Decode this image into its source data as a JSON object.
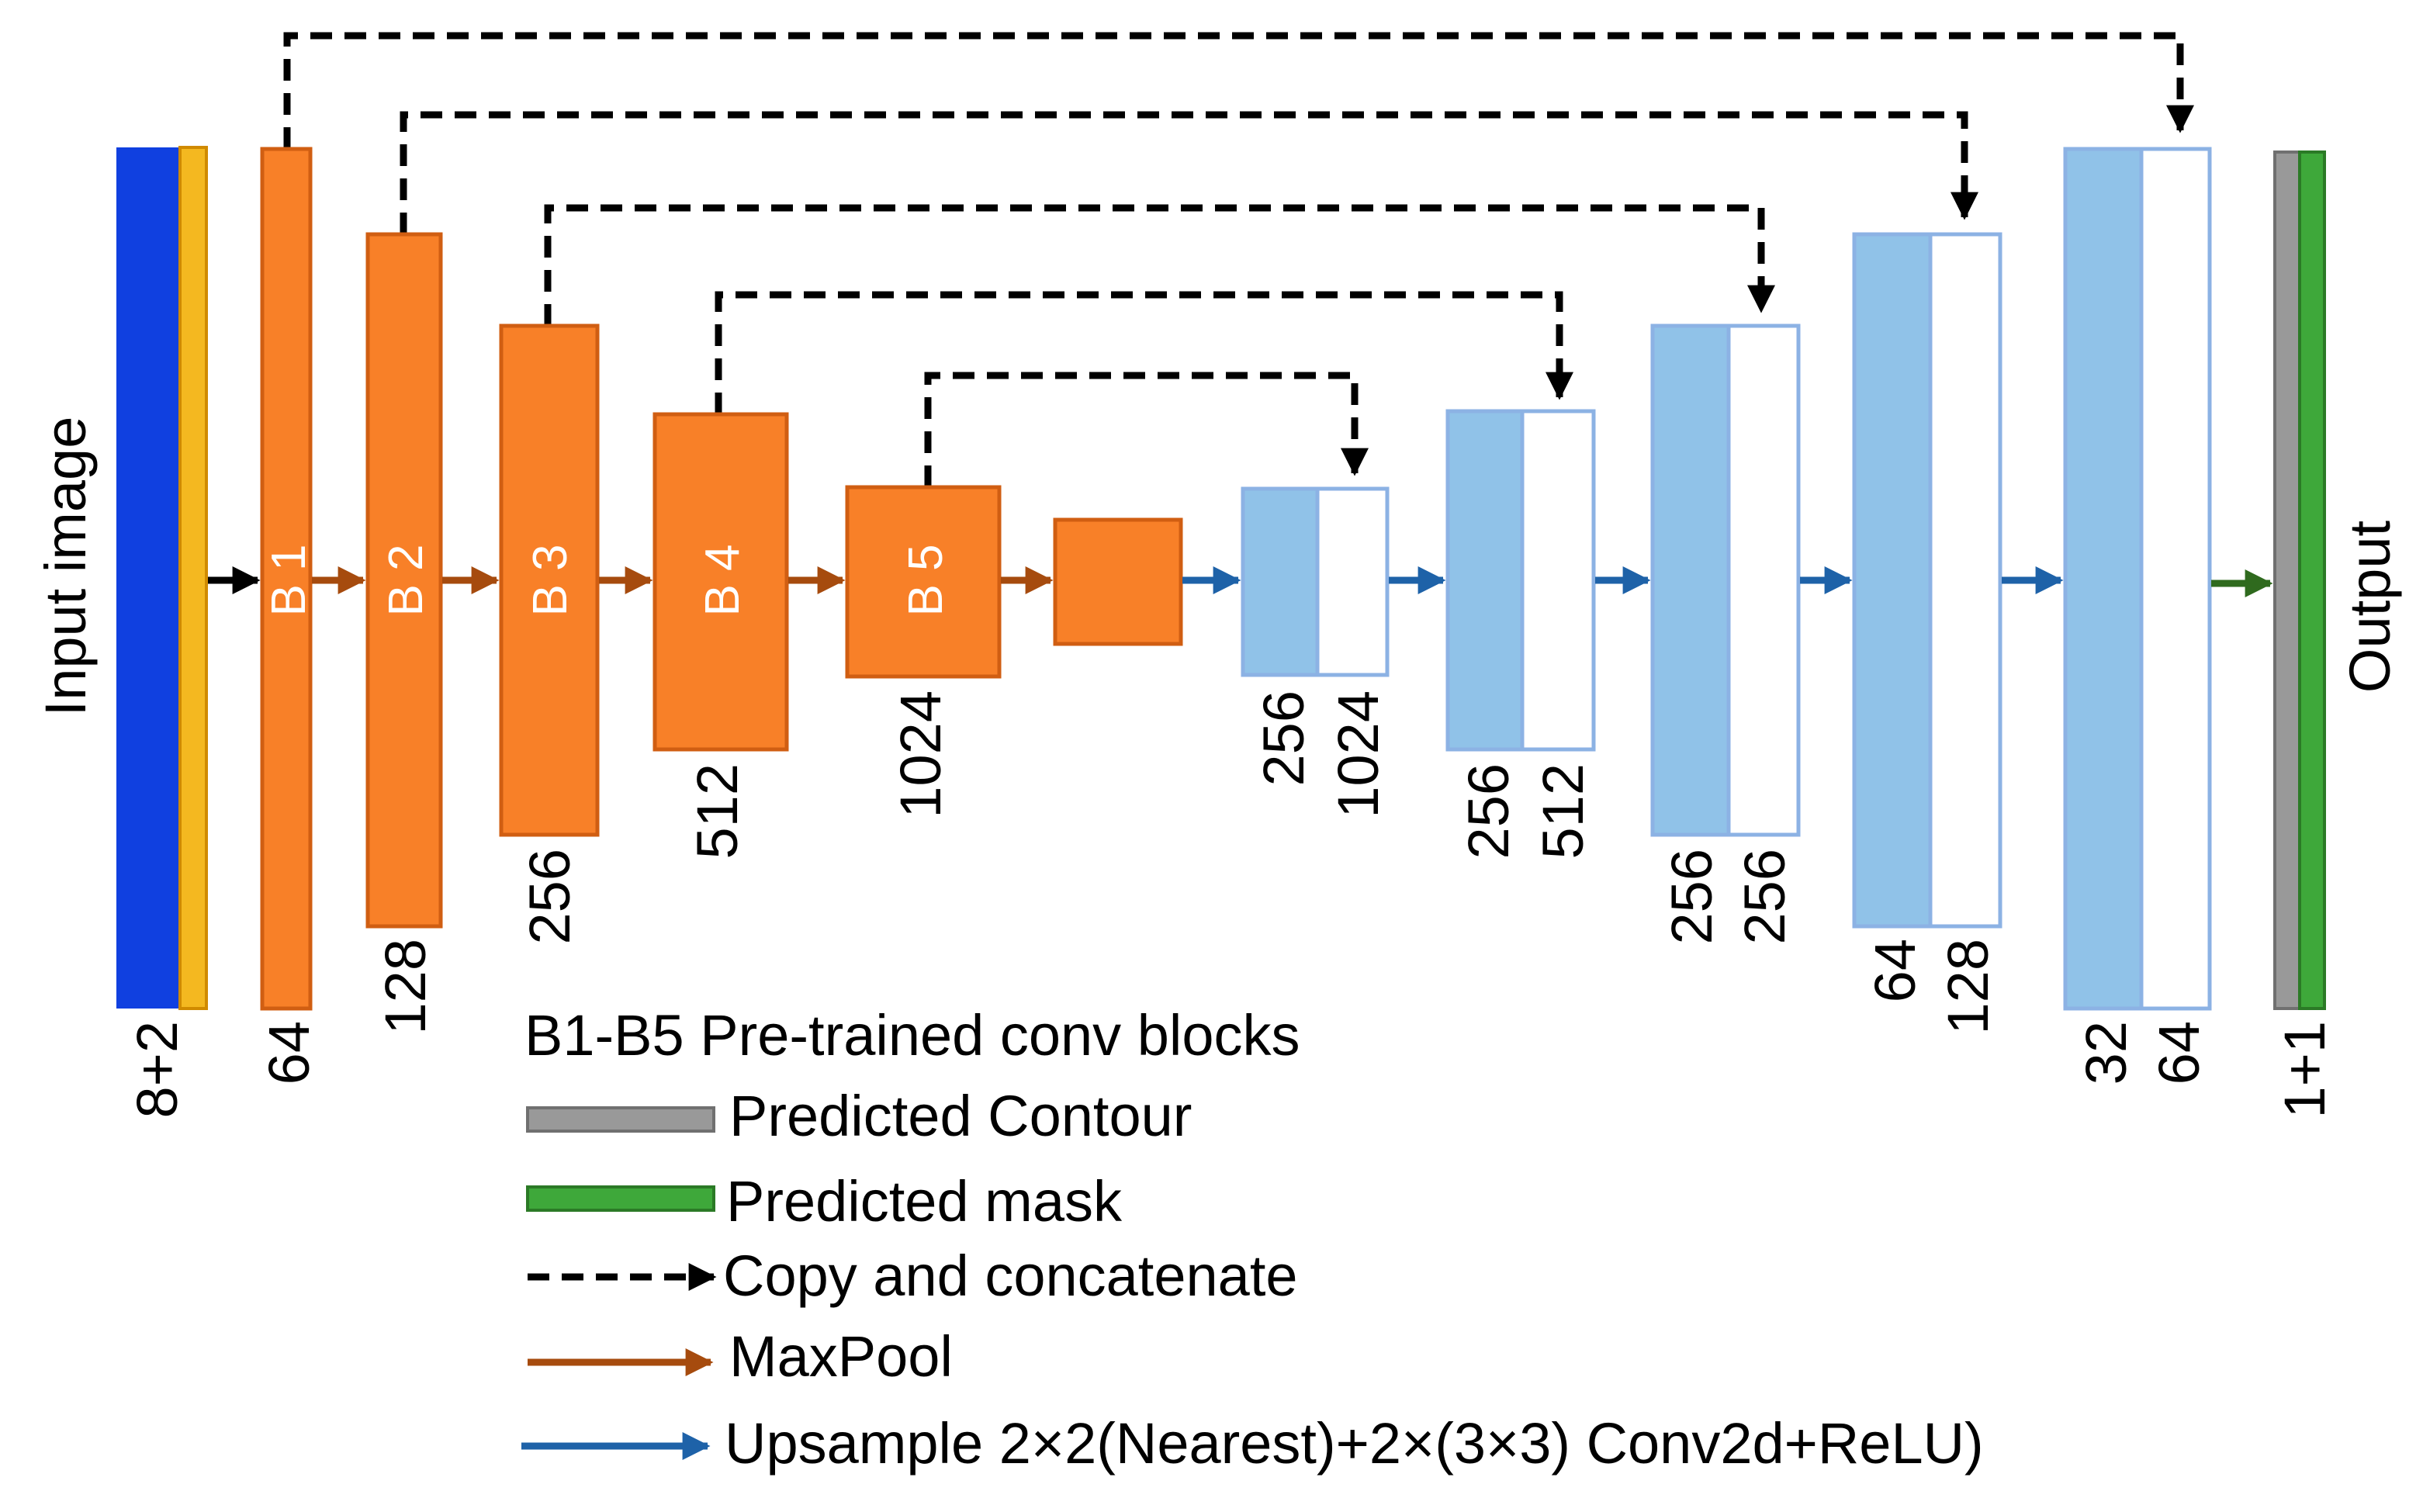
{
  "title_labels": {
    "input": "Input image",
    "output": "Output"
  },
  "encoder": {
    "blocks": [
      "B 1",
      "B 2",
      "B 3",
      "B 4",
      "B 5"
    ],
    "channels": [
      "64",
      "128",
      "256",
      "512",
      "1024"
    ]
  },
  "input_channels": "8+2",
  "output_channels": "1+1",
  "decoder": {
    "stages": [
      {
        "up": "256",
        "skip": "1024"
      },
      {
        "up": "256",
        "skip": "512"
      },
      {
        "up": "256",
        "skip": "256"
      },
      {
        "up": "64",
        "skip": "128"
      },
      {
        "up": "32",
        "skip": "64"
      }
    ]
  },
  "legend": {
    "blocks": "B1-B5 Pre-trained conv blocks",
    "contour": "Predicted Contour",
    "mask": "Predicted mask",
    "copy": "Copy and concatenate",
    "maxpool": "MaxPool",
    "upsample": "Upsample 2×2(Nearest)+2×(3×3) Conv2d+ReLU)"
  },
  "colors": {
    "input_blue": "#1040E0",
    "input_yellow": "#F4B820",
    "encoder_orange": "#F88028",
    "encoder_border": "#D05E12",
    "decoder_fill": "#90C2E8",
    "decoder_border": "#8CB2E4",
    "maxpool_arrow": "#A64B0E",
    "upsample_arrow": "#1E62A8",
    "output_arrow": "#2F6A1E",
    "contour_gray": "#999999",
    "mask_green": "#3EA83A"
  }
}
